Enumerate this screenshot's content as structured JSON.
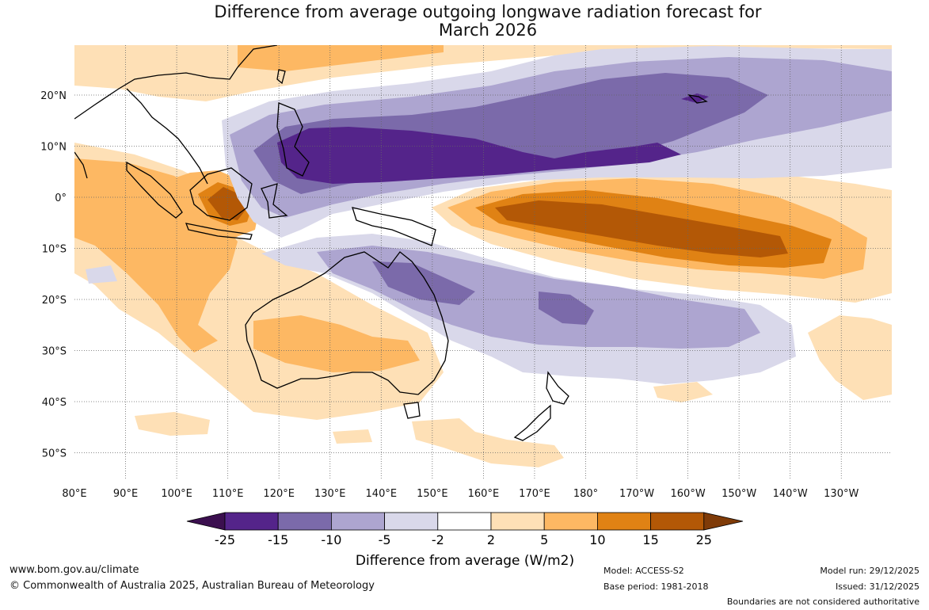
{
  "title": {
    "line1": "Difference from average outgoing longwave radiation forecast for",
    "line2": "March 2026"
  },
  "map": {
    "lon_labels": [
      "80°E",
      "90°E",
      "100°E",
      "110°E",
      "120°E",
      "130°E",
      "140°E",
      "150°E",
      "160°E",
      "170°E",
      "180°",
      "170°W",
      "160°W",
      "150°W",
      "140°W",
      "130°W"
    ],
    "lat_labels": [
      "20°N",
      "10°N",
      "0°",
      "10°S",
      "20°S",
      "30°S",
      "40°S",
      "50°S"
    ]
  },
  "legend": {
    "colors": [
      "#3b0f4f",
      "#54248a",
      "#7b6aaa",
      "#ada5d0",
      "#d9d8ea",
      "#ffffff",
      "#fee0b6",
      "#fdb863",
      "#e08214",
      "#b35806",
      "#7f3b08"
    ],
    "tick_labels": [
      "-25",
      "-15",
      "-10",
      "-5",
      "-2",
      "2",
      "5",
      "10",
      "15",
      "25"
    ],
    "axis_label": "Difference from average (W/m2)"
  },
  "footer": {
    "website": "www.bom.gov.au/climate",
    "copyright": "© Commonwealth of Australia 2025, Australian Bureau of Meteorology",
    "model": "Model: ACCESS-S2",
    "base_period": "Base period: 1981-2018",
    "model_run": "Model run: 29/12/2025",
    "issued": "Issued: 31/12/2025",
    "disclaimer": "Boundaries are not considered authoritative"
  }
}
